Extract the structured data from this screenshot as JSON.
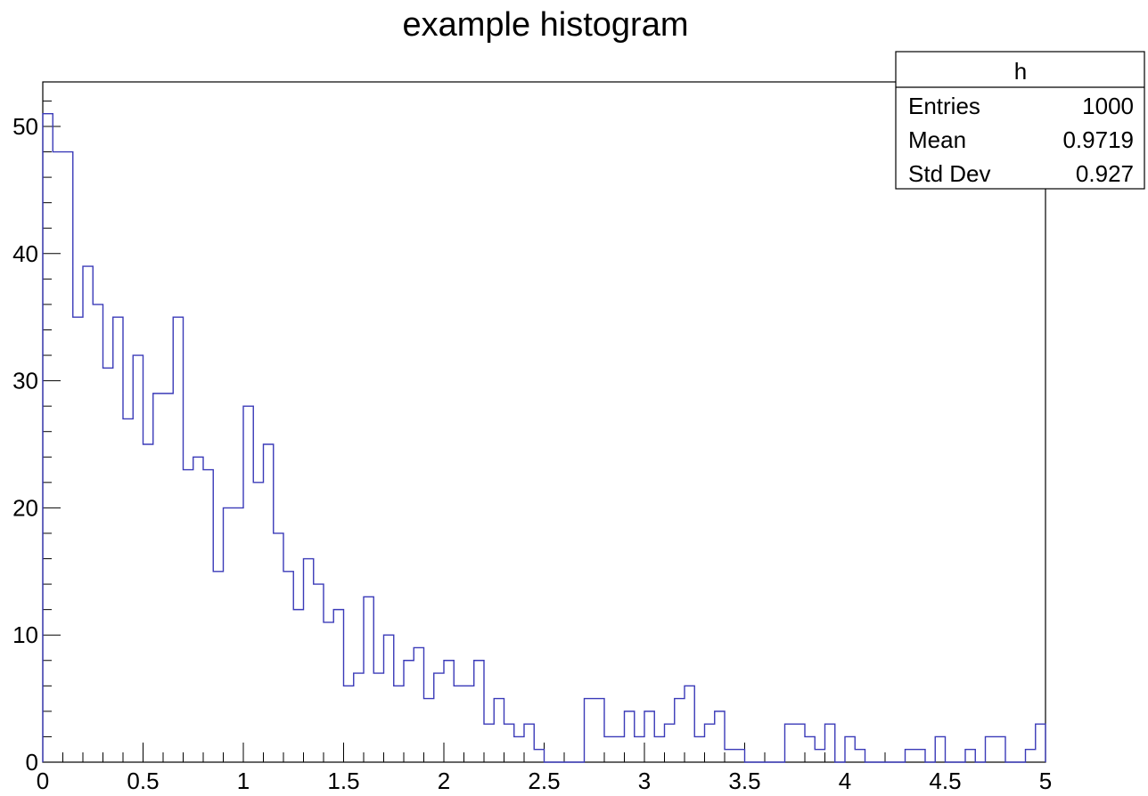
{
  "colors": {
    "histogram_line": "#3a3ab8",
    "axis": "#000000",
    "background": "#ffffff"
  },
  "chart_data": {
    "type": "bar",
    "style": "step-histogram",
    "title": "example histogram",
    "xlabel": "",
    "ylabel": "",
    "xlim": [
      0,
      5
    ],
    "ylim": [
      0,
      53.5
    ],
    "bin_count": 100,
    "bin_width": 0.05,
    "x_ticks": [
      0,
      0.5,
      1,
      1.5,
      2,
      2.5,
      3,
      3.5,
      4,
      4.5,
      5
    ],
    "x_tick_labels": [
      "0",
      "0.5",
      "1",
      "1.5",
      "2",
      "2.5",
      "3",
      "3.5",
      "4",
      "4.5",
      "5"
    ],
    "y_ticks": [
      0,
      10,
      20,
      30,
      40,
      50
    ],
    "y_tick_labels": [
      "0",
      "10",
      "20",
      "30",
      "40",
      "50"
    ],
    "grid": false,
    "series": [
      {
        "values": [
          51,
          48,
          48,
          35,
          39,
          36,
          31,
          35,
          27,
          32,
          25,
          29,
          29,
          35,
          23,
          24,
          23,
          15,
          20,
          20,
          28,
          22,
          25,
          18,
          15,
          12,
          16,
          14,
          11,
          12,
          6,
          7,
          13,
          7,
          10,
          6,
          8,
          9,
          5,
          7,
          8,
          6,
          6,
          8,
          3,
          5,
          3,
          2,
          3,
          1,
          0,
          0,
          0,
          0,
          5,
          5,
          2,
          2,
          4,
          2,
          4,
          2,
          3,
          5,
          6,
          2,
          3,
          4,
          1,
          1,
          0,
          0,
          0,
          0,
          3,
          3,
          2,
          1,
          3,
          0,
          2,
          1,
          0,
          0,
          0,
          0,
          1,
          1,
          0,
          2,
          0,
          0,
          1,
          0,
          2,
          2,
          0,
          0,
          1,
          3
        ]
      }
    ],
    "stats_box": {
      "name": "h",
      "rows": [
        {
          "label": "Entries",
          "value": "1000"
        },
        {
          "label": "Mean",
          "value": "0.9719"
        },
        {
          "label": "Std Dev",
          "value": "0.927"
        }
      ]
    }
  }
}
